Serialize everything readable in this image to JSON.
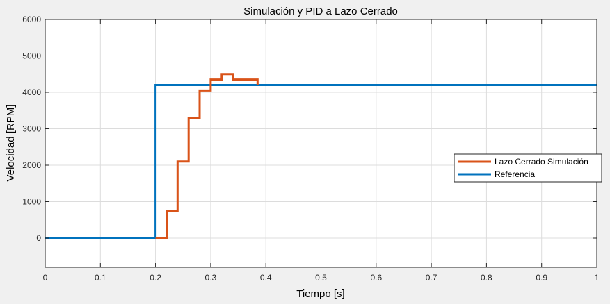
{
  "chart_data": {
    "type": "line",
    "title": "Simulación y PID a Lazo Cerrado",
    "xlabel": "Tiempo [s]",
    "ylabel": "Velocidad [RPM]",
    "xlim": [
      0,
      1
    ],
    "ylim": [
      -800,
      6000
    ],
    "xticks": [
      0,
      0.1,
      0.2,
      0.3,
      0.4,
      0.5,
      0.6,
      0.7,
      0.8,
      0.9,
      1
    ],
    "xtick_labels": [
      "0",
      "0.1",
      "0.2",
      "0.3",
      "0.4",
      "0.5",
      "0.6",
      "0.7",
      "0.8",
      "0.9",
      "1"
    ],
    "yticks": [
      0,
      1000,
      2000,
      3000,
      4000,
      5000,
      6000
    ],
    "ytick_labels": [
      "0",
      "1000",
      "2000",
      "3000",
      "4000",
      "5000",
      "6000"
    ],
    "grid": true,
    "legend_position": "right",
    "series": [
      {
        "name": "Lazo Cerrado Simulación",
        "color": "#d95319",
        "step": true,
        "x": [
          0.2,
          0.22,
          0.24,
          0.26,
          0.28,
          0.3,
          0.32,
          0.34,
          0.385
        ],
        "y": [
          0,
          750,
          2100,
          3300,
          4050,
          4350,
          4500,
          4350,
          4200
        ]
      },
      {
        "name": "Referencia",
        "color": "#0072bd",
        "step": true,
        "x": [
          0,
          0.2,
          1
        ],
        "y": [
          0,
          4200,
          4200
        ]
      }
    ]
  }
}
